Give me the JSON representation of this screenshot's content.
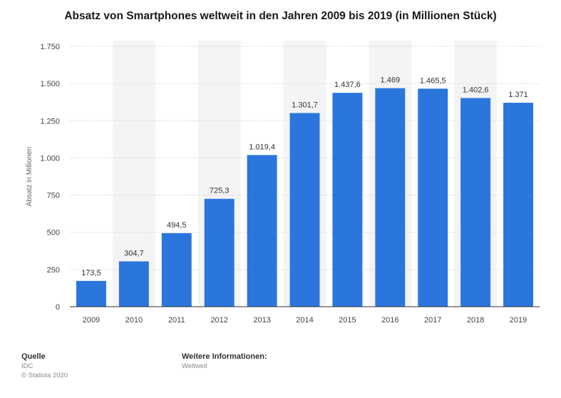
{
  "chart_data": {
    "type": "bar",
    "title": "Absatz von Smartphones weltweit in den Jahren 2009 bis 2019 (in Millionen Stück)",
    "ylabel": "Absatz in Millionen",
    "xlabel": "",
    "categories": [
      "2009",
      "2010",
      "2011",
      "2012",
      "2013",
      "2014",
      "2015",
      "2016",
      "2017",
      "2018",
      "2019"
    ],
    "values": [
      173.5,
      304.7,
      494.5,
      725.3,
      1019.4,
      1301.7,
      1437.6,
      1469,
      1465.5,
      1402.6,
      1371
    ],
    "value_labels": [
      "173,5",
      "304,7",
      "494,5",
      "725,3",
      "1.019,4",
      "1.301,7",
      "1.437,6",
      "1.469",
      "1.465,5",
      "1.402,6",
      "1.371"
    ],
    "ylim": [
      0,
      1750
    ],
    "yticks": [
      0,
      250,
      500,
      750,
      1000,
      1250,
      1500,
      1750
    ],
    "ytick_labels": [
      "0",
      "250",
      "500",
      "750",
      "1.000",
      "1.250",
      "1.500",
      "1.750"
    ],
    "bar_color": "#2a76dd",
    "grid": true,
    "legend": "none"
  },
  "footer": {
    "source_label": "Quelle",
    "source_value": "IDC",
    "copyright": "© Statista 2020",
    "info_label": "Weitere Informationen:",
    "info_value": "Weltweit"
  }
}
